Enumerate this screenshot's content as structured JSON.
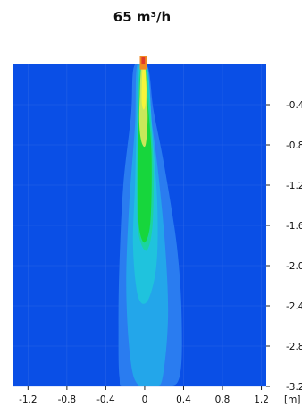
{
  "chart_data": {
    "type": "heatmap",
    "title": "65 m³/h",
    "xlabel": "[m]",
    "ylabel": "",
    "xlim": [
      -1.35,
      1.25
    ],
    "ylim": [
      -3.2,
      0.0
    ],
    "x_ticks": [
      -1.2,
      -0.8,
      -0.4,
      0,
      0.4,
      0.8,
      1.2
    ],
    "x_tick_labels": [
      "-1.2",
      "-0.8",
      "-0.4",
      "0",
      "0.4",
      "0.8",
      "1.2"
    ],
    "y_ticks": [
      -0.4,
      -0.8,
      -1.2,
      -1.6,
      -2.0,
      -2.4,
      -2.8,
      -3.2
    ],
    "y_tick_labels": [
      "-0.4",
      "-0.8",
      "-1.2",
      "-1.6",
      "-2.0",
      "-2.4",
      "-2.8",
      "-3.2"
    ],
    "y_axis_side": "right",
    "grid": true,
    "colors": {
      "background": "#0a4fe6",
      "level1": "#2a7cf0",
      "level2": "#23a6ea",
      "level3": "#1fc3dd",
      "level4": "#1bd4a0",
      "level5": "#17d63c",
      "level6": "#c8e85a",
      "level7": "#f5f53a",
      "source_orange": "#f08a24",
      "source_red": "#e03a2a"
    },
    "contours": [
      {
        "name": "level1",
        "points": [
          [
            -0.11,
            -0.02
          ],
          [
            -0.14,
            -0.5
          ],
          [
            -0.22,
            -1.2
          ],
          [
            -0.26,
            -2.0
          ],
          [
            -0.27,
            -2.6
          ],
          [
            -0.26,
            -3.1
          ],
          [
            -0.2,
            -3.2
          ],
          [
            0.2,
            -3.2
          ],
          [
            0.36,
            -3.1
          ],
          [
            0.38,
            -2.5
          ],
          [
            0.33,
            -1.8
          ],
          [
            0.2,
            -1.0
          ],
          [
            0.09,
            -0.45
          ],
          [
            0.03,
            -0.02
          ]
        ]
      },
      {
        "name": "level2",
        "points": [
          [
            -0.08,
            -0.02
          ],
          [
            -0.1,
            -0.6
          ],
          [
            -0.16,
            -1.4
          ],
          [
            -0.19,
            -2.2
          ],
          [
            -0.15,
            -2.9
          ],
          [
            -0.07,
            -3.18
          ],
          [
            0.12,
            -3.2
          ],
          [
            0.19,
            -3.08
          ],
          [
            0.24,
            -2.5
          ],
          [
            0.21,
            -1.8
          ],
          [
            0.13,
            -1.0
          ],
          [
            0.05,
            -0.4
          ],
          [
            0.02,
            -0.02
          ]
        ]
      },
      {
        "name": "level3",
        "points": [
          [
            -0.06,
            -0.03
          ],
          [
            -0.08,
            -0.5
          ],
          [
            -0.1,
            -1.2
          ],
          [
            -0.12,
            -1.8
          ],
          [
            -0.07,
            -2.3
          ],
          [
            0.03,
            -2.35
          ],
          [
            0.12,
            -2.0
          ],
          [
            0.13,
            -1.4
          ],
          [
            0.08,
            -0.7
          ],
          [
            0.03,
            -0.03
          ]
        ]
      },
      {
        "name": "level4",
        "points": [
          [
            -0.05,
            -0.05
          ],
          [
            -0.07,
            -0.6
          ],
          [
            -0.08,
            -1.3
          ],
          [
            -0.06,
            -1.7
          ],
          [
            0.02,
            -1.85
          ],
          [
            0.08,
            -1.6
          ],
          [
            0.09,
            -1.0
          ],
          [
            0.05,
            -0.4
          ],
          [
            0.02,
            -0.05
          ]
        ]
      },
      {
        "name": "level5",
        "points": [
          [
            -0.04,
            -0.05
          ],
          [
            -0.06,
            -0.5
          ],
          [
            -0.07,
            -1.1
          ],
          [
            -0.06,
            -1.6
          ],
          [
            0.0,
            -1.77
          ],
          [
            0.06,
            -1.55
          ],
          [
            0.07,
            -0.9
          ],
          [
            0.03,
            -0.35
          ],
          [
            0.01,
            -0.05
          ]
        ]
      },
      {
        "name": "level6",
        "points": [
          [
            -0.035,
            -0.02
          ],
          [
            -0.05,
            -0.3
          ],
          [
            -0.055,
            -0.6
          ],
          [
            -0.03,
            -0.78
          ],
          [
            0.01,
            -0.8
          ],
          [
            0.03,
            -0.55
          ],
          [
            0.02,
            -0.25
          ],
          [
            0.005,
            -0.02
          ]
        ]
      },
      {
        "name": "level7",
        "points": [
          [
            -0.02,
            -0.02
          ],
          [
            -0.03,
            -0.2
          ],
          [
            -0.03,
            -0.38
          ],
          [
            -0.01,
            -0.45
          ],
          [
            0.01,
            -0.38
          ],
          [
            0.015,
            -0.18
          ],
          [
            0.0,
            -0.02
          ]
        ]
      }
    ],
    "source": {
      "x": -0.015,
      "y_top": 0.08,
      "y_bottom": -0.05,
      "half_width": 0.035
    }
  }
}
